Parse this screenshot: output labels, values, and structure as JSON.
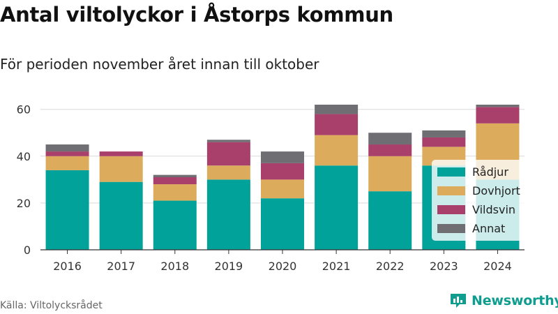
{
  "header": {
    "title": "Antal viltolyckor i Åstorps kommun",
    "subtitle": "För perioden november året innan till oktober"
  },
  "footer": {
    "source": "Källa: Viltolycksrådet",
    "brand": "Newsworthy",
    "brand_icon": "bar-chart-logo-icon"
  },
  "colors": {
    "Rådjur": "#00a29a",
    "Dovhjort": "#dcac5c",
    "Vildsvin": "#a8406b",
    "Annat": "#6e6e73",
    "brand": "#0f9d8f"
  },
  "chart_data": {
    "type": "bar",
    "stacked": true,
    "categories": [
      "2016",
      "2017",
      "2018",
      "2019",
      "2020",
      "2021",
      "2022",
      "2023",
      "2024"
    ],
    "series": [
      {
        "name": "Rådjur",
        "values": [
          34,
          29,
          21,
          30,
          22,
          36,
          25,
          36,
          30
        ]
      },
      {
        "name": "Dovhjort",
        "values": [
          6,
          11,
          7,
          6,
          8,
          13,
          15,
          8,
          24
        ]
      },
      {
        "name": "Vildsvin",
        "values": [
          2,
          2,
          3,
          10,
          7,
          9,
          5,
          4,
          7
        ]
      },
      {
        "name": "Annat",
        "values": [
          3,
          0,
          1,
          1,
          5,
          4,
          5,
          3,
          1
        ]
      }
    ],
    "ylim": [
      0,
      62
    ],
    "yticks": [
      0,
      20,
      40,
      60
    ],
    "xlabel": "",
    "ylabel": "",
    "grid": "horizontal",
    "legend_position": "inside-right"
  }
}
